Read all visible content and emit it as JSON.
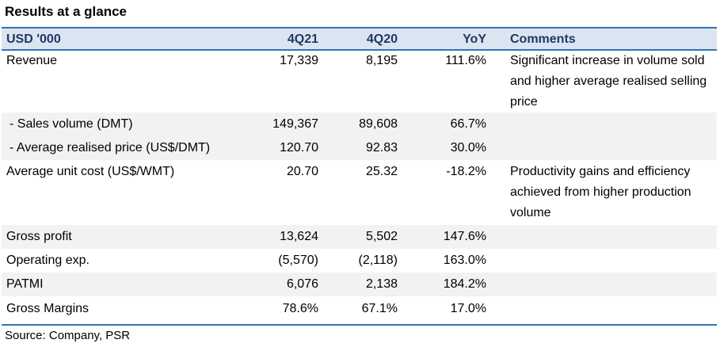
{
  "title": "Results at a glance",
  "header": {
    "label": "USD '000",
    "col1": "4Q21",
    "col2": "4Q20",
    "col3": "YoY",
    "col4": "Comments"
  },
  "rows": [
    {
      "label": "Revenue",
      "q21": "17,339",
      "q20": "8,195",
      "yoy": "111.6%",
      "comment": "Significant increase in volume sold and higher average realised selling price"
    },
    {
      "label": " - Sales volume (DMT)",
      "q21": "149,367",
      "q20": "89,608",
      "yoy": "66.7%",
      "comment": ""
    },
    {
      "label": " - Average realised price (US$/DMT)",
      "q21": "120.70",
      "q20": "92.83",
      "yoy": "30.0%",
      "comment": ""
    },
    {
      "label": "Average unit cost (US$/WMT)",
      "q21": "20.70",
      "q20": "25.32",
      "yoy": "-18.2%",
      "comment": "Productivity gains and efficiency achieved from higher production volume"
    },
    {
      "label": "Gross profit",
      "q21": "13,624",
      "q20": "5,502",
      "yoy": "147.6%",
      "comment": ""
    },
    {
      "label": "Operating exp.",
      "q21": "(5,570)",
      "q20": "(2,118)",
      "yoy": "163.0%",
      "comment": ""
    },
    {
      "label": "PATMI",
      "q21": "6,076",
      "q20": "2,138",
      "yoy": "184.2%",
      "comment": ""
    },
    {
      "label": "Gross Margins",
      "q21": "78.6%",
      "q20": "67.1%",
      "yoy": "17.0%",
      "comment": ""
    }
  ],
  "source": "Source: Company, PSR"
}
